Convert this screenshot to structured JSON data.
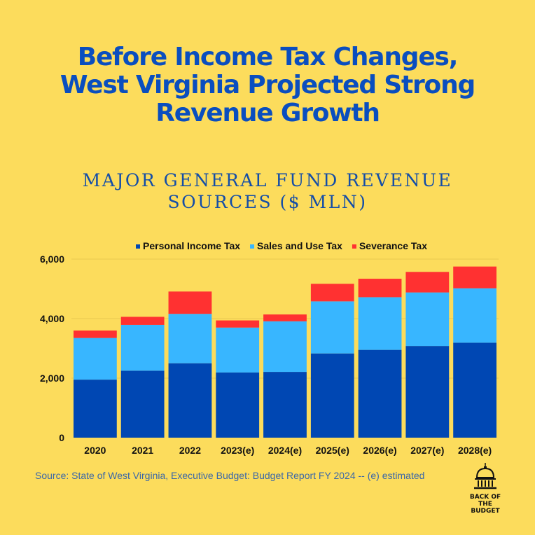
{
  "title_lines": [
    "Before Income Tax Changes,",
    "West Virginia Projected Strong",
    "Revenue Growth"
  ],
  "subtitle_lines": [
    "MAJOR GENERAL FUND REVENUE",
    "SOURCES ($ MLN)"
  ],
  "source": "Source: State of West Virginia, Executive Budget: Budget Report FY 2024 -- (e) estimated",
  "logo": {
    "lines": [
      "BACK OF THE",
      "BUDGET"
    ],
    "icon": "capitol-dome-icon"
  },
  "colors": {
    "background": "#fcdc5c",
    "title": "#0a4ebf"
  },
  "chart_data": {
    "type": "bar",
    "stacked": true,
    "categories": [
      "2020",
      "2021",
      "2022",
      "2023(e)",
      "2024(e)",
      "2025(e)",
      "2026(e)",
      "2027(e)",
      "2028(e)"
    ],
    "series": [
      {
        "name": "Personal Income Tax",
        "color": "#0047b3",
        "values": [
          1950,
          2250,
          2500,
          2190,
          2210,
          2830,
          2950,
          3080,
          3190
        ]
      },
      {
        "name": "Sales and Use Tax",
        "color": "#38b6ff",
        "values": [
          1400,
          1540,
          1660,
          1510,
          1700,
          1750,
          1770,
          1800,
          1830
        ]
      },
      {
        "name": "Severance Tax",
        "color": "#ff3131",
        "values": [
          250,
          270,
          750,
          240,
          230,
          590,
          620,
          690,
          730
        ]
      }
    ],
    "y_ticks": [
      "0",
      "2,000",
      "4,000",
      "6,000"
    ],
    "ylim": [
      0,
      6000
    ],
    "legend_position": "top-center",
    "grid": false
  }
}
